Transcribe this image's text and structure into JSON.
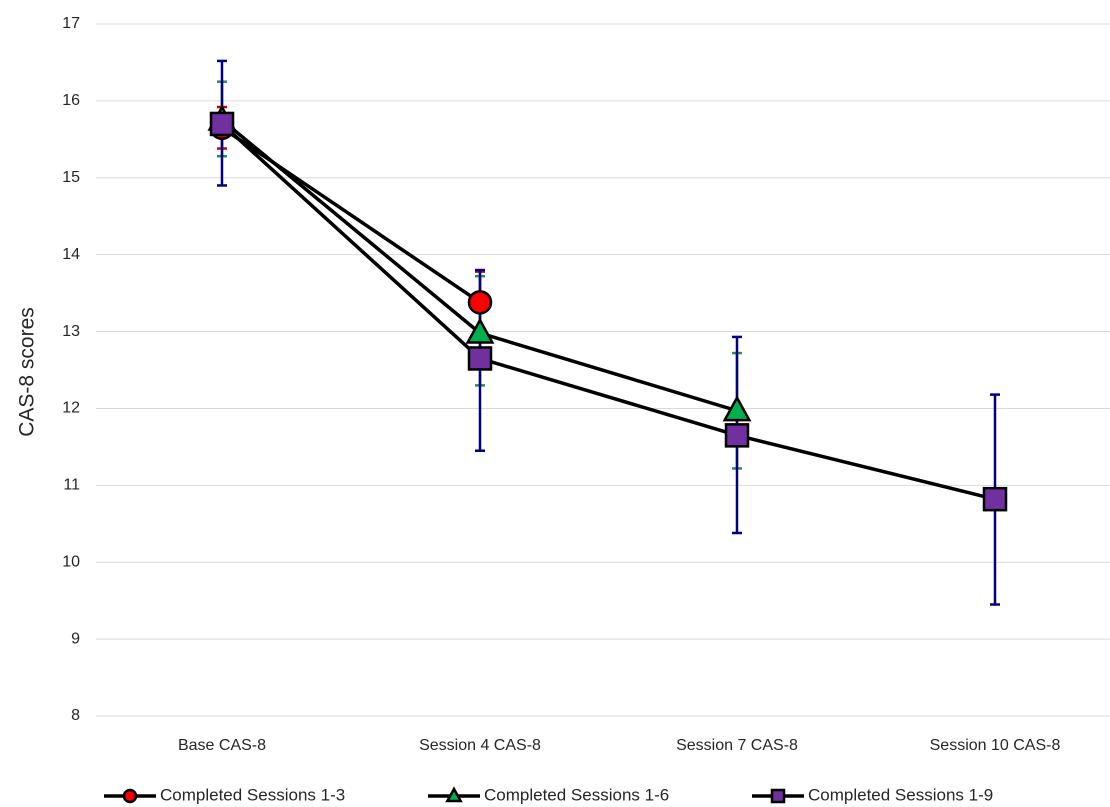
{
  "chart_data": {
    "type": "line",
    "title": "",
    "xlabel": "",
    "ylabel": "CAS-8 scores",
    "ylim": [
      8,
      17
    ],
    "yticks": [
      8,
      9,
      10,
      11,
      12,
      13,
      14,
      15,
      16,
      17
    ],
    "categories": [
      "Base CAS-8",
      "Session 4 CAS-8",
      "Session 7 CAS-8",
      "Session 10 CAS-8"
    ],
    "grid": true,
    "legend_position": "bottom",
    "series": [
      {
        "name": "Completed Sessions 1-3",
        "marker": "circle",
        "marker_color": "#ff0000",
        "error_color": "#cc0000",
        "values": [
          15.65,
          13.38,
          null,
          null
        ],
        "error_low": [
          15.38,
          13.0,
          null,
          null
        ],
        "error_high": [
          15.92,
          13.78,
          null,
          null
        ]
      },
      {
        "name": "Completed Sessions 1-6",
        "marker": "triangle",
        "marker_color": "#00b050",
        "error_color": "#2e8b57",
        "values": [
          15.75,
          12.98,
          11.97,
          null
        ],
        "error_low": [
          15.28,
          12.3,
          11.22,
          null
        ],
        "error_high": [
          16.25,
          13.72,
          12.72,
          null
        ]
      },
      {
        "name": "Completed Sessions 1-9",
        "marker": "square",
        "marker_color": "#7030a0",
        "error_color": "#000080",
        "values": [
          15.7,
          12.65,
          11.65,
          10.82
        ],
        "error_low": [
          14.9,
          11.45,
          10.38,
          9.45
        ],
        "error_high": [
          16.52,
          13.8,
          12.93,
          12.18
        ]
      }
    ]
  }
}
